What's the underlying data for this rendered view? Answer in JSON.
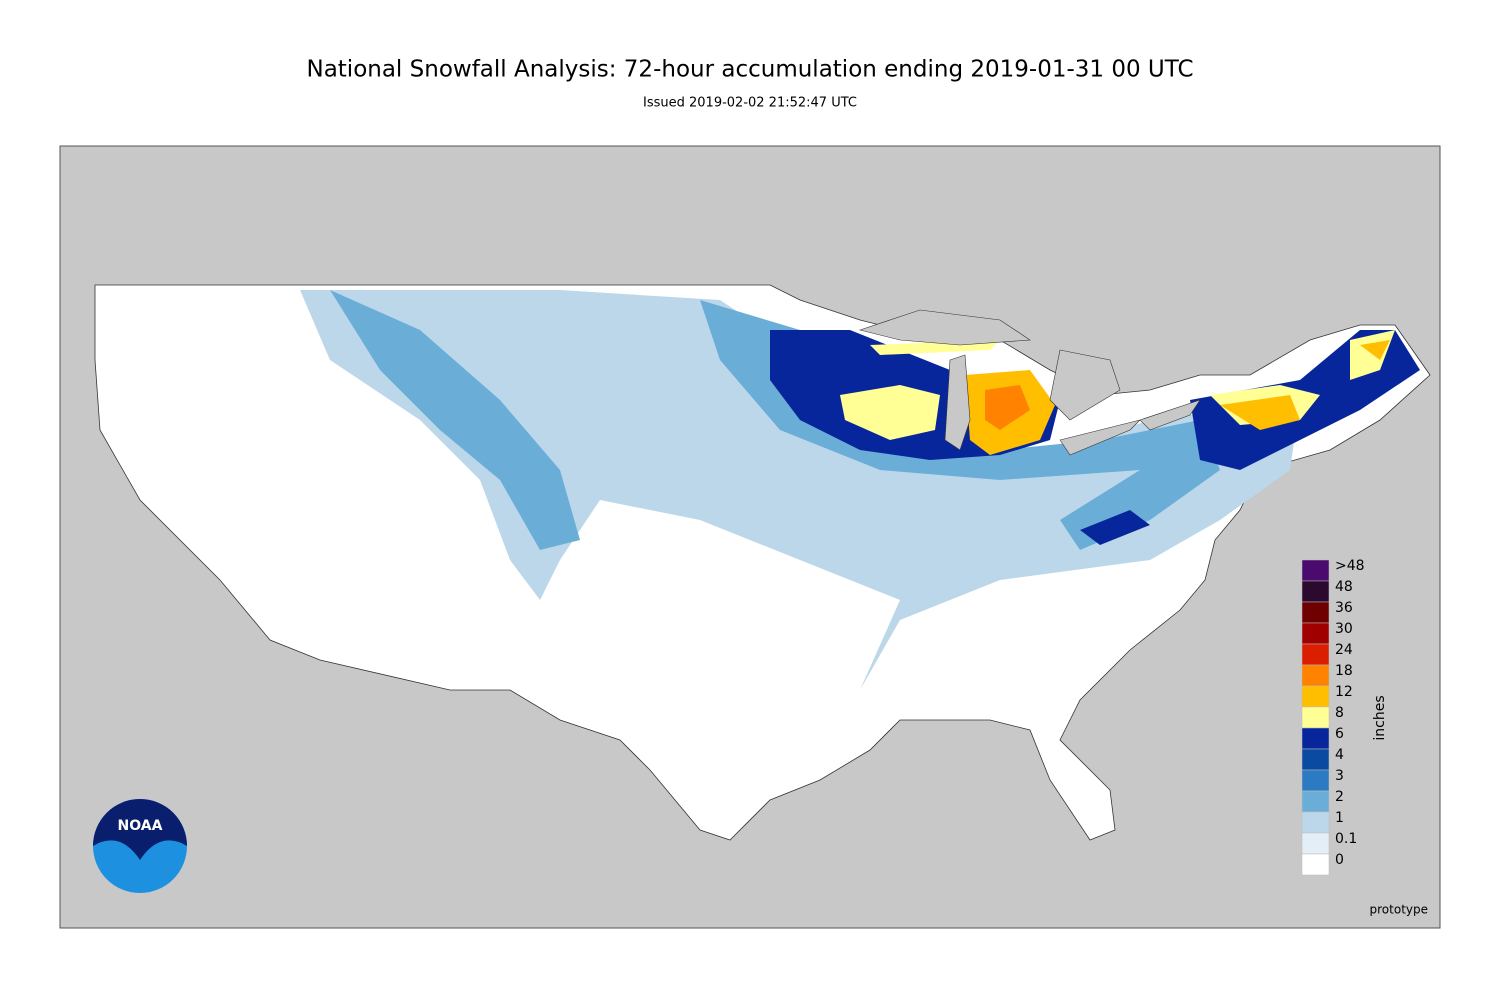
{
  "header": {
    "title": "National Snowfall Analysis: 72-hour accumulation ending 2019-01-31 00 UTC",
    "subtitle": "Issued 2019-02-02 21:52:47 UTC"
  },
  "logo": "NOAA",
  "legend": {
    "unit": "inches",
    "levels": [
      {
        "label": ">48",
        "color": "#4b0a6e"
      },
      {
        "label": "48",
        "color": "#2c0a30"
      },
      {
        "label": "36",
        "color": "#6e0000"
      },
      {
        "label": "30",
        "color": "#a00000"
      },
      {
        "label": "24",
        "color": "#dc1e00"
      },
      {
        "label": "18",
        "color": "#ff8200"
      },
      {
        "label": "12",
        "color": "#ffbe00"
      },
      {
        "label": "8",
        "color": "#ffff96"
      },
      {
        "label": "6",
        "color": "#08269c"
      },
      {
        "label": "4",
        "color": "#0a4aa0"
      },
      {
        "label": "3",
        "color": "#2c7bc2"
      },
      {
        "label": "2",
        "color": "#6aaed8"
      },
      {
        "label": "1",
        "color": "#bcd7ea"
      },
      {
        "label": "0.1",
        "color": "#e4eef7"
      },
      {
        "label": "0",
        "color": "#ffffff"
      }
    ]
  },
  "footer": "prototype"
}
